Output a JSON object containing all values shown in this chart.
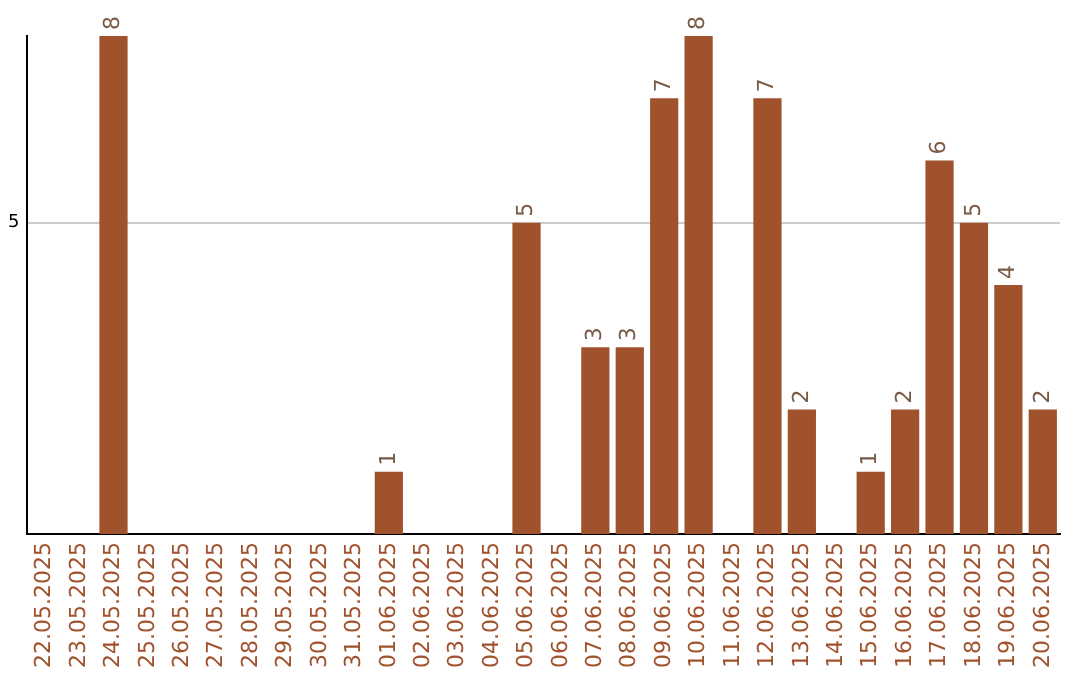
{
  "chart_data": {
    "type": "bar",
    "categories": [
      "22.05.2025",
      "23.05.2025",
      "24.05.2025",
      "25.05.2025",
      "26.05.2025",
      "27.05.2025",
      "28.05.2025",
      "29.05.2025",
      "30.05.2025",
      "31.05.2025",
      "01.06.2025",
      "02.06.2025",
      "03.06.2025",
      "04.06.2025",
      "05.06.2025",
      "06.06.2025",
      "07.06.2025",
      "08.06.2025",
      "09.06.2025",
      "10.06.2025",
      "11.06.2025",
      "12.06.2025",
      "13.06.2025",
      "14.06.2025",
      "15.06.2025",
      "16.06.2025",
      "17.06.2025",
      "18.06.2025",
      "19.06.2025",
      "20.06.2025"
    ],
    "values": [
      null,
      null,
      8,
      null,
      null,
      null,
      null,
      null,
      null,
      null,
      1,
      null,
      null,
      null,
      5,
      null,
      3,
      3,
      7,
      8,
      null,
      7,
      2,
      null,
      1,
      2,
      6,
      5,
      4,
      2
    ],
    "color": "#a0522d",
    "ylim": [
      0,
      8
    ],
    "yticks": [
      5
    ],
    "grid": "y",
    "legend": false,
    "data_labels": true
  }
}
